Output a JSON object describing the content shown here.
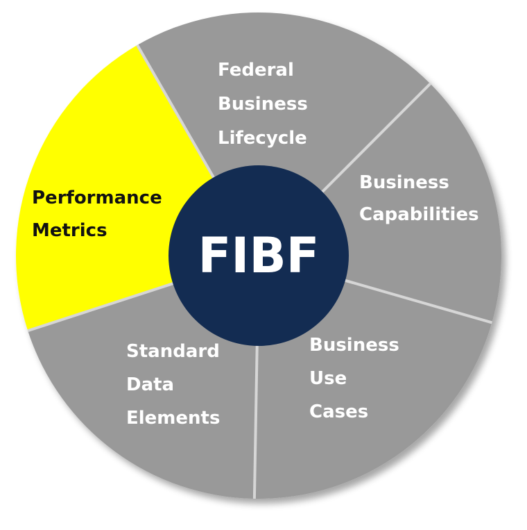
{
  "center": {
    "label": "FIBF",
    "fill": "#132c52",
    "text_color": "#ffffff"
  },
  "segments": [
    {
      "id": "federal-business-lifecycle",
      "lines": [
        "Federal",
        "Business",
        "Lifecycle"
      ],
      "fill": "#999999",
      "text_color": "#ffffff",
      "highlighted": false
    },
    {
      "id": "business-capabilities",
      "lines": [
        "Business",
        "Capabilities"
      ],
      "fill": "#999999",
      "text_color": "#ffffff",
      "highlighted": false
    },
    {
      "id": "business-use-cases",
      "lines": [
        "Business",
        "Use",
        "Cases"
      ],
      "fill": "#999999",
      "text_color": "#ffffff",
      "highlighted": false
    },
    {
      "id": "standard-data-elements",
      "lines": [
        "Standard",
        "Data",
        "Elements"
      ],
      "fill": "#999999",
      "text_color": "#ffffff",
      "highlighted": false
    },
    {
      "id": "performance-metrics",
      "lines": [
        "Performance",
        "Metrics"
      ],
      "fill": "#ffff00",
      "text_color": "#111111",
      "highlighted": true
    }
  ],
  "divider_color": "#d6d6d6"
}
